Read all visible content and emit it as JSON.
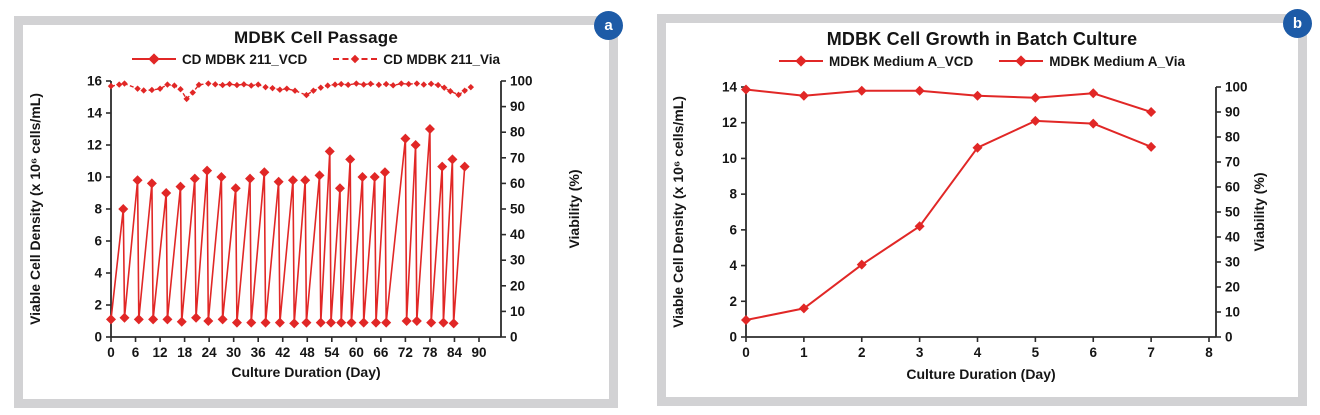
{
  "colors": {
    "accent_red": "#e12726",
    "badge_blue": "#1d5ba7",
    "panel_border": "#d2d2d4",
    "axis": "#2b2b2b",
    "text": "#151515"
  },
  "panels": [
    {
      "badge": "a"
    },
    {
      "badge": "b"
    }
  ],
  "chart_data": [
    {
      "type": "line",
      "title": "MDBK Cell Passage",
      "x_axis": {
        "label": "Culture Duration (Day)",
        "min": 0,
        "max": 90,
        "ticks": [
          0,
          6,
          12,
          18,
          24,
          30,
          36,
          42,
          48,
          54,
          60,
          66,
          72,
          78,
          84,
          90
        ]
      },
      "y_left": {
        "label": "Viable Cell Density (x 10⁶ cells/mL)",
        "min": 0,
        "max": 16,
        "ticks": [
          0,
          2,
          4,
          6,
          8,
          10,
          12,
          14,
          16
        ]
      },
      "y_right": {
        "label": "Viability (%)",
        "min": 0,
        "max": 100,
        "ticks": [
          0,
          10,
          20,
          30,
          40,
          50,
          60,
          70,
          80,
          90,
          100
        ]
      },
      "grid": false,
      "legend_position": "top",
      "series": [
        {
          "name": "CD MDBK 211_VCD",
          "axis": "left",
          "line": "solid",
          "marker": "diamond",
          "marker_size": 5,
          "stroke_width": 1.6,
          "x": [
            0,
            3,
            3.3,
            6.5,
            6.8,
            10,
            10.3,
            13.5,
            13.8,
            17,
            17.3,
            20.5,
            20.8,
            23.5,
            23.8,
            27,
            27.3,
            30.5,
            30.8,
            34,
            34.3,
            37.5,
            37.8,
            41,
            41.3,
            44.5,
            44.8,
            47.5,
            47.8,
            51,
            51.3,
            53.5,
            53.8,
            56,
            56.3,
            58.5,
            58.8,
            61.5,
            61.8,
            64.5,
            64.8,
            67,
            67.3,
            72,
            72.3,
            74.5,
            74.8,
            78,
            78.3,
            81,
            81.3,
            83.5,
            83.8,
            86.5
          ],
          "y": [
            1.1,
            8.0,
            1.2,
            9.8,
            1.1,
            9.6,
            1.1,
            9.0,
            1.1,
            9.4,
            0.95,
            9.9,
            1.2,
            10.4,
            1.0,
            10.0,
            1.1,
            9.3,
            0.9,
            9.9,
            0.9,
            10.3,
            0.9,
            9.7,
            0.9,
            9.8,
            0.85,
            9.8,
            0.9,
            10.1,
            0.9,
            11.6,
            0.9,
            9.3,
            0.9,
            11.1,
            0.9,
            10.0,
            0.9,
            10.0,
            0.9,
            10.3,
            0.9,
            12.4,
            1.0,
            12.0,
            1.0,
            13.0,
            0.9,
            10.65,
            0.9,
            11.1,
            0.85,
            10.65
          ]
        },
        {
          "name": "CD MDBK 211_Via",
          "axis": "right",
          "line": "dashed",
          "marker": "diamond",
          "marker_size": 3.2,
          "stroke_width": 1.4,
          "x": [
            0,
            2,
            3.3,
            6.5,
            8,
            10,
            12,
            13.8,
            15.5,
            17,
            18.5,
            20,
            21.5,
            23.8,
            25.5,
            27.3,
            29,
            30.8,
            32.5,
            34.3,
            36,
            37.8,
            39.5,
            41.3,
            43,
            45,
            47.8,
            49.5,
            51.3,
            53,
            54.8,
            56.3,
            58,
            60,
            61.8,
            63.5,
            65.5,
            67.3,
            69,
            71,
            72.8,
            74.8,
            76.5,
            78.3,
            80,
            81.5,
            83,
            85,
            86.5,
            88
          ],
          "y": [
            98,
            98.6,
            99,
            97,
            96.3,
            96.5,
            97,
            98.6,
            98.2,
            96.8,
            93,
            95.5,
            98.5,
            99,
            98.7,
            98.4,
            98.8,
            98.4,
            98.7,
            98.2,
            98.6,
            97.6,
            97.2,
            96.6,
            97,
            96.2,
            94.5,
            96.2,
            97.4,
            98.2,
            98.6,
            98.8,
            98.5,
            99,
            98.6,
            98.9,
            98.5,
            98.8,
            98.3,
            99,
            98.8,
            99,
            98.6,
            98.9,
            98.4,
            97.4,
            96,
            94.6,
            96.2,
            97.6
          ]
        }
      ]
    },
    {
      "type": "line",
      "title": "MDBK Cell Growth in Batch Culture",
      "x_axis": {
        "label": "Culture Duration (Day)",
        "min": 0,
        "max": 8,
        "ticks": [
          0,
          1,
          2,
          3,
          4,
          5,
          6,
          7,
          8
        ]
      },
      "y_left": {
        "label": "Viable Cell Density (x 10⁶ cells/mL)",
        "min": 0,
        "max": 14,
        "ticks": [
          0,
          2,
          4,
          6,
          8,
          10,
          12,
          14
        ]
      },
      "y_right": {
        "label": "Viability (%)",
        "min": 0,
        "max": 100,
        "ticks": [
          0,
          10,
          20,
          30,
          40,
          50,
          60,
          70,
          80,
          90,
          100
        ]
      },
      "grid": false,
      "legend_position": "top",
      "series": [
        {
          "name": "MDBK Medium A_VCD",
          "axis": "left",
          "line": "solid",
          "marker": "diamond",
          "marker_size": 5,
          "stroke_width": 2,
          "x": [
            0,
            1,
            2,
            3,
            4,
            5,
            6,
            7
          ],
          "y": [
            0.95,
            1.6,
            4.05,
            6.2,
            10.6,
            12.1,
            11.95,
            10.65
          ]
        },
        {
          "name": "MDBK Medium A_Via",
          "axis": "right",
          "line": "solid",
          "marker": "diamond",
          "marker_size": 5,
          "stroke_width": 2,
          "x": [
            0,
            1,
            2,
            3,
            4,
            5,
            6,
            7
          ],
          "y": [
            99,
            96.5,
            98.5,
            98.5,
            96.5,
            95.7,
            97.5,
            90
          ]
        }
      ]
    }
  ]
}
